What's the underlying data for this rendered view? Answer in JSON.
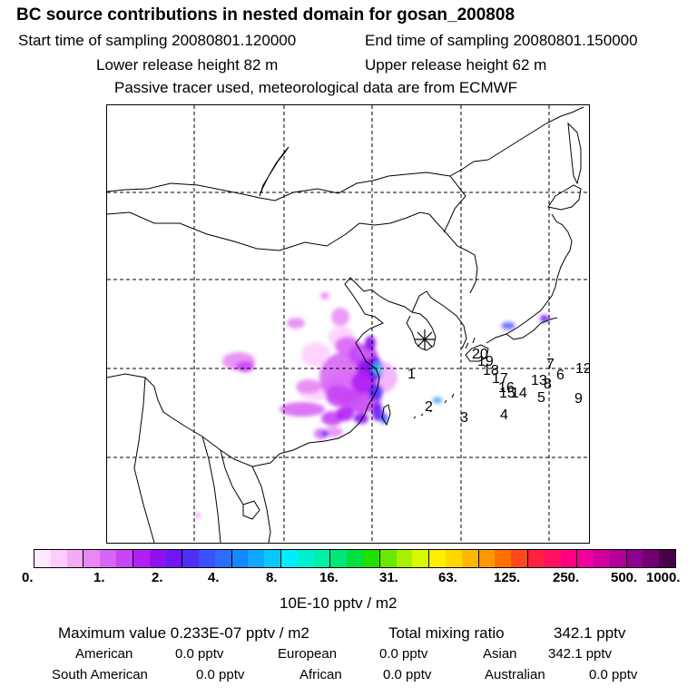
{
  "header": {
    "title": "BC  source contributions in nested domain for gosan_200808",
    "start_time": "Start time of sampling 20080801.120000",
    "end_time": "End time of sampling 20080801.150000",
    "lower_release": "Lower release height   82 m",
    "upper_release": "Upper release height   62 m",
    "tracer_note": "Passive tracer used, meteorological data are from ECMWF"
  },
  "map": {
    "receptor_marker": "star-receptor-icon",
    "region_labels": [
      "1",
      "2",
      "3",
      "4",
      "5",
      "6",
      "7",
      "8",
      "9",
      "12",
      "13",
      "14",
      "15",
      "16",
      "17",
      "18",
      "19",
      "20"
    ]
  },
  "colorbar": {
    "colors": [
      "#ffe8ff",
      "#ffccff",
      "#f5aaf8",
      "#e888f5",
      "#d866f5",
      "#c844f5",
      "#b020f5",
      "#9010f0",
      "#6e18f5",
      "#5030f8",
      "#3c50ff",
      "#2c6cff",
      "#1488ff",
      "#10a8ff",
      "#08c8ff",
      "#00ecff",
      "#00f0d0",
      "#00f0a8",
      "#00e878",
      "#00e040",
      "#20e000",
      "#6ae800",
      "#a8f000",
      "#d8f800",
      "#fff000",
      "#ffd800",
      "#ffb800",
      "#ff9800",
      "#ff7000",
      "#ff4820",
      "#ff2040",
      "#ff1060",
      "#ff0080",
      "#f0009c",
      "#d000a0",
      "#b00098",
      "#900090",
      "#700070",
      "#480048"
    ],
    "tick_labels": [
      "0.",
      "1.",
      "2.",
      "4.",
      "8.",
      "16.",
      "31.",
      "63.",
      "125.",
      "250.",
      "500.",
      "1000."
    ],
    "units": "10E-10 pptv / m2"
  },
  "summary": {
    "maximum_label": "Maximum value  0.233E-07 pptv / m2",
    "total_label": "Total mixing ratio",
    "total_value": "342.1 pptv",
    "regions": [
      {
        "name": "American",
        "value": "0.0 pptv"
      },
      {
        "name": "European",
        "value": "0.0 pptv"
      },
      {
        "name": "Asian",
        "value": "342.1 pptv"
      },
      {
        "name": "South American",
        "value": "0.0 pptv"
      },
      {
        "name": "African",
        "value": "0.0 pptv"
      },
      {
        "name": "Australian",
        "value": "0.0 pptv"
      }
    ]
  }
}
